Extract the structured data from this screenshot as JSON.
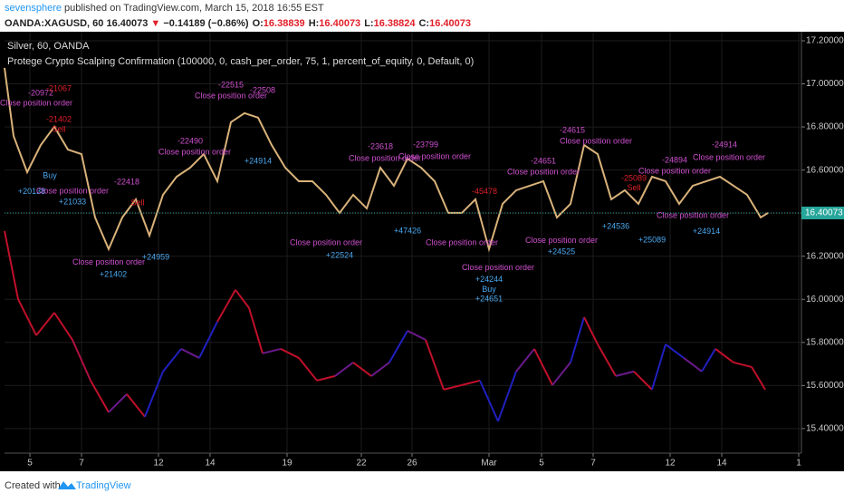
{
  "header": {
    "author": "sevensphere",
    "published": " published on TradingView.com, March 15, 2018 16:55 EST",
    "symbol": "OANDA:XAGUSD, 60",
    "last": "16.40073",
    "arrow": "▼",
    "change": "−0.14189 (−0.86%)",
    "ohlc": [
      {
        "label": "O:",
        "value": "16.38839"
      },
      {
        "label": "H:",
        "value": "16.40073"
      },
      {
        "label": "L:",
        "value": "16.38824"
      },
      {
        "label": "C:",
        "value": "16.40073"
      }
    ]
  },
  "legend": [
    "Silver, 60, OANDA",
    "Protege Crypto Scalping Confirmation (100000, 0, cash_per_order, 75, 1, percent_of_equity, 0, Default, 0)"
  ],
  "footer": {
    "created": "Created with",
    "brand": "TradingView"
  },
  "chart_data": {
    "type": "line",
    "last_price": 16.40073,
    "last_price_label": "16.40073",
    "last_price_color": "#26a69a",
    "xlim": [
      0,
      880
    ],
    "ylim": [
      15.286,
      17.242
    ],
    "xticks": [
      {
        "value": 28,
        "label": "5"
      },
      {
        "value": 85,
        "label": "7"
      },
      {
        "value": 170,
        "label": "12"
      },
      {
        "value": 227,
        "label": "14"
      },
      {
        "value": 312,
        "label": "19"
      },
      {
        "value": 394,
        "label": "22"
      },
      {
        "value": 450,
        "label": "26"
      },
      {
        "value": 535,
        "label": "Mar"
      },
      {
        "value": 593,
        "label": "5"
      },
      {
        "value": 650,
        "label": "7"
      },
      {
        "value": 735,
        "label": "12"
      },
      {
        "value": 792,
        "label": "14"
      },
      {
        "value": 877,
        "label": "1"
      }
    ],
    "yticks": [
      {
        "value": 15.4,
        "label": "15.40000"
      },
      {
        "value": 15.6,
        "label": "15.60000"
      },
      {
        "value": 15.8,
        "label": "15.80000"
      },
      {
        "value": 16,
        "label": "16.00000"
      },
      {
        "value": 16.2,
        "label": "16.20000"
      },
      {
        "value": 16.4,
        "label": "16.40000"
      },
      {
        "value": 16.6,
        "label": "16.60000"
      },
      {
        "value": 16.8,
        "label": "16.80000"
      },
      {
        "value": 17,
        "label": "17.00000"
      },
      {
        "value": 17.2,
        "label": "17.20000"
      }
    ],
    "series": [
      {
        "name": "Silver",
        "color": "#d9b27a",
        "x": [
          0,
          10,
          25,
          40,
          55,
          70,
          85,
          100,
          115,
          130,
          145,
          160,
          175,
          190,
          205,
          220,
          235,
          250,
          265,
          280,
          295,
          310,
          325,
          340,
          355,
          370,
          385,
          400,
          415,
          430,
          445,
          460,
          475,
          490,
          505,
          520,
          535,
          550,
          565,
          580,
          595,
          610,
          625,
          640,
          655,
          670,
          685,
          700,
          715,
          730,
          745,
          760,
          775,
          790,
          805,
          820,
          835,
          843
        ],
        "values": [
          17.074,
          16.758,
          16.59,
          16.716,
          16.801,
          16.695,
          16.674,
          16.38,
          16.233,
          16.38,
          16.464,
          16.296,
          16.485,
          16.569,
          16.611,
          16.674,
          16.548,
          16.822,
          16.864,
          16.843,
          16.716,
          16.611,
          16.548,
          16.548,
          16.485,
          16.401,
          16.485,
          16.422,
          16.611,
          16.527,
          16.653,
          16.611,
          16.548,
          16.401,
          16.401,
          16.464,
          16.233,
          16.443,
          16.506,
          16.527,
          16.548,
          16.38,
          16.443,
          16.716,
          16.674,
          16.464,
          16.506,
          16.443,
          16.569,
          16.548,
          16.443,
          16.527,
          16.548,
          16.569,
          16.527,
          16.485,
          16.38,
          16.40073
        ]
      },
      {
        "name": "Protege Crypto Scalping Confirmation",
        "color": "#c0102a",
        "x": [
          0,
          15,
          35,
          55,
          75,
          95,
          115,
          135,
          155,
          175,
          195,
          215,
          235,
          255,
          270,
          285,
          305,
          325,
          345,
          365,
          385,
          405,
          425,
          445,
          465,
          485,
          505,
          525,
          545,
          565,
          585,
          605,
          625,
          640,
          655,
          675,
          695,
          715,
          730,
          750,
          770,
          785,
          805,
          825,
          840
        ],
        "values": [
          16.317,
          16.001,
          15.833,
          15.938,
          15.812,
          15.623,
          15.476,
          15.56,
          15.455,
          15.665,
          15.77,
          15.728,
          15.896,
          16.044,
          15.96,
          15.749,
          15.77,
          15.728,
          15.623,
          15.644,
          15.707,
          15.644,
          15.707,
          15.854,
          15.812,
          15.581,
          15.602,
          15.623,
          15.434,
          15.665,
          15.77,
          15.602,
          15.707,
          15.917,
          15.791,
          15.644,
          15.665,
          15.581,
          15.791,
          15.728,
          15.665,
          15.77,
          15.707,
          15.686,
          15.581
        ],
        "colors": [
          "#c0102a",
          "#c0102a",
          "#c0102a",
          "#c0102a",
          "#c0102a",
          "#b01040",
          "#c0102a",
          "#6a1a8a",
          "#c0102a",
          "#2020c0",
          "#2020c0",
          "#6a1a8a",
          "#2020c0",
          "#c0102a",
          "#c0102a",
          "#c0102a",
          "#6a1a8a",
          "#c0102a",
          "#c0102a",
          "#c0102a",
          "#6a1a8a",
          "#c0102a",
          "#6a1a8a",
          "#2020c0",
          "#6a1a8a",
          "#c0102a",
          "#c0102a",
          "#c0102a",
          "#2020c0",
          "#2020c0",
          "#6a1a8a",
          "#c0102a",
          "#6a1a8a",
          "#2020c0",
          "#c0102a",
          "#c0102a",
          "#6a1a8a",
          "#c0102a",
          "#2020c0",
          "#2020c0",
          "#6a1a8a",
          "#2020c0",
          "#c0102a",
          "#c0102a",
          "#c0102a"
        ]
      }
    ],
    "annotations": [
      {
        "x": 40,
        "y": 16.956,
        "text": "-20972",
        "color": "#d050d0"
      },
      {
        "x": 60,
        "y": 16.977,
        "text": "-21067",
        "color": "#e0202a"
      },
      {
        "x": 35,
        "y": 16.91,
        "text": "Close position order",
        "color": "#d050d0"
      },
      {
        "x": 60,
        "y": 16.834,
        "text": "-21402",
        "color": "#e0202a"
      },
      {
        "x": 60,
        "y": 16.788,
        "text": "Sell",
        "color": "#e0202a"
      },
      {
        "x": 30,
        "y": 16.498,
        "text": "+20138",
        "color": "#4aa8f0"
      },
      {
        "x": 50,
        "y": 16.573,
        "text": "Buy",
        "color": "#4aa8f0"
      },
      {
        "x": 75,
        "y": 16.502,
        "text": "Close position order",
        "color": "#d050d0"
      },
      {
        "x": 75,
        "y": 16.451,
        "text": "+21033",
        "color": "#4aa8f0"
      },
      {
        "x": 135,
        "y": 16.544,
        "text": "-22418",
        "color": "#d050d0"
      },
      {
        "x": 147,
        "y": 16.447,
        "text": "Sell",
        "color": "#e0202a"
      },
      {
        "x": 115,
        "y": 16.17,
        "text": "Close position order",
        "color": "#d050d0"
      },
      {
        "x": 120,
        "y": 16.115,
        "text": "+21402",
        "color": "#4aa8f0"
      },
      {
        "x": 167,
        "y": 16.195,
        "text": "+24959",
        "color": "#4aa8f0"
      },
      {
        "x": 250,
        "y": 16.943,
        "text": "Close position order",
        "color": "#d050d0"
      },
      {
        "x": 250,
        "y": 16.994,
        "text": "-22515",
        "color": "#d050d0"
      },
      {
        "x": 285,
        "y": 16.969,
        "text": "-22508",
        "color": "#d050d0"
      },
      {
        "x": 280,
        "y": 16.641,
        "text": "+24914",
        "color": "#4aa8f0"
      },
      {
        "x": 210,
        "y": 16.683,
        "text": "Close position order",
        "color": "#d050d0"
      },
      {
        "x": 205,
        "y": 16.733,
        "text": "-22490",
        "color": "#d050d0"
      },
      {
        "x": 420,
        "y": 16.653,
        "text": "Close position order",
        "color": "#d050d0"
      },
      {
        "x": 415,
        "y": 16.708,
        "text": "-23618",
        "color": "#d050d0"
      },
      {
        "x": 465,
        "y": 16.716,
        "text": "-23799",
        "color": "#d050d0"
      },
      {
        "x": 475,
        "y": 16.662,
        "text": "Close position order",
        "color": "#d050d0"
      },
      {
        "x": 445,
        "y": 16.317,
        "text": "+47426",
        "color": "#4aa8f0"
      },
      {
        "x": 355,
        "y": 16.262,
        "text": "Close position order",
        "color": "#d050d0"
      },
      {
        "x": 370,
        "y": 16.203,
        "text": "+22524",
        "color": "#4aa8f0"
      },
      {
        "x": 530,
        "y": 16.498,
        "text": "-45478",
        "color": "#e0202a"
      },
      {
        "x": 505,
        "y": 16.262,
        "text": "Close position order",
        "color": "#d050d0"
      },
      {
        "x": 545,
        "y": 16.145,
        "text": "Close position order",
        "color": "#d050d0"
      },
      {
        "x": 535,
        "y": 16.09,
        "text": "+24244",
        "color": "#4aa8f0"
      },
      {
        "x": 535,
        "y": 16.044,
        "text": "Buy",
        "color": "#4aa8f0"
      },
      {
        "x": 535,
        "y": 16.001,
        "text": "+24651",
        "color": "#4aa8f0"
      },
      {
        "x": 595,
        "y": 16.59,
        "text": "Close position order",
        "color": "#d050d0"
      },
      {
        "x": 595,
        "y": 16.641,
        "text": "-24651",
        "color": "#d050d0"
      },
      {
        "x": 615,
        "y": 16.271,
        "text": "Close position order",
        "color": "#d050d0"
      },
      {
        "x": 615,
        "y": 16.22,
        "text": "+24525",
        "color": "#4aa8f0"
      },
      {
        "x": 653,
        "y": 16.733,
        "text": "Close position order",
        "color": "#d050d0"
      },
      {
        "x": 627,
        "y": 16.784,
        "text": "-24615",
        "color": "#d050d0"
      },
      {
        "x": 740,
        "y": 16.594,
        "text": "Close position order",
        "color": "#d050d0"
      },
      {
        "x": 740,
        "y": 16.645,
        "text": "-24894",
        "color": "#d050d0"
      },
      {
        "x": 800,
        "y": 16.657,
        "text": "Close position order",
        "color": "#d050d0"
      },
      {
        "x": 795,
        "y": 16.716,
        "text": "-24914",
        "color": "#d050d0"
      },
      {
        "x": 760,
        "y": 16.388,
        "text": "Close position order",
        "color": "#d050d0"
      },
      {
        "x": 775,
        "y": 16.313,
        "text": "+24914",
        "color": "#4aa8f0"
      },
      {
        "x": 695,
        "y": 16.561,
        "text": "-25089",
        "color": "#e0202a"
      },
      {
        "x": 695,
        "y": 16.515,
        "text": "Sell",
        "color": "#e0202a"
      },
      {
        "x": 715,
        "y": 16.275,
        "text": "+25089",
        "color": "#4aa8f0"
      },
      {
        "x": 675,
        "y": 16.338,
        "text": "+24536",
        "color": "#4aa8f0"
      }
    ]
  }
}
